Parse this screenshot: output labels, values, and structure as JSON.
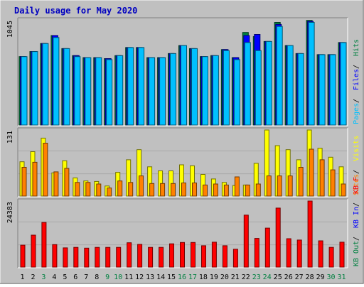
{
  "title": "Daily usage for May 2020",
  "colors": {
    "background": "#c0c0c0",
    "frame_dark": "#808080",
    "frame_light": "#ffffff",
    "title_blue": "#0000c0",
    "hits": "#008040",
    "files": "#0000ff",
    "pages": "#00c0ff",
    "visits": "#ffff00",
    "sites": "#ff8000",
    "kb_f": "#ff0000",
    "kb_in": "#0000ff",
    "kb_out": "#008040",
    "weekend_label": "#008040",
    "weekday_label": "#000000"
  },
  "chart_data": [
    {
      "type": "bar",
      "name": "hits-files-pages",
      "ymax_label": "1045",
      "ylim": [
        0,
        1045
      ],
      "legend": [
        {
          "label": "Hits",
          "color": "#008040"
        },
        {
          "label": "Files",
          "color": "#0000ff"
        },
        {
          "label": "Pages",
          "color": "#00c0ff"
        }
      ],
      "categories": [
        "1",
        "2",
        "3",
        "4",
        "5",
        "6",
        "7",
        "8",
        "9",
        "10",
        "11",
        "12",
        "13",
        "14",
        "15",
        "16",
        "17",
        "18",
        "19",
        "20",
        "21",
        "22",
        "23",
        "24",
        "25",
        "26",
        "27",
        "28",
        "29",
        "30",
        "31"
      ],
      "series": [
        {
          "name": "Hits",
          "values": [
            680,
            730,
            810,
            890,
            760,
            690,
            670,
            670,
            660,
            690,
            770,
            770,
            670,
            670,
            710,
            790,
            760,
            680,
            690,
            750,
            670,
            920,
            880,
            830,
            1020,
            790,
            710,
            1040,
            700,
            700,
            820
          ]
        },
        {
          "name": "Files",
          "values": [
            680,
            730,
            810,
            890,
            760,
            690,
            670,
            670,
            660,
            690,
            770,
            770,
            670,
            670,
            710,
            790,
            760,
            680,
            690,
            750,
            670,
            890,
            900,
            830,
            1000,
            790,
            710,
            1030,
            700,
            700,
            820
          ]
        },
        {
          "name": "Pages",
          "values": [
            680,
            730,
            810,
            870,
            760,
            680,
            670,
            670,
            650,
            690,
            770,
            770,
            670,
            670,
            710,
            790,
            760,
            680,
            690,
            740,
            650,
            820,
            740,
            830,
            980,
            790,
            710,
            1020,
            700,
            700,
            820
          ]
        }
      ]
    },
    {
      "type": "bar",
      "name": "visits-sites",
      "ymax_label": "131",
      "ylim": [
        0,
        131
      ],
      "legend": [
        {
          "label": "Visits",
          "color": "#ffff00"
        },
        {
          "label": "Sites",
          "color": "#ff8000"
        }
      ],
      "categories": [
        "1",
        "2",
        "3",
        "4",
        "5",
        "6",
        "7",
        "8",
        "9",
        "10",
        "11",
        "12",
        "13",
        "14",
        "15",
        "16",
        "17",
        "18",
        "19",
        "20",
        "21",
        "22",
        "23",
        "24",
        "25",
        "26",
        "27",
        "28",
        "29",
        "30",
        "31"
      ],
      "series": [
        {
          "name": "Visits",
          "values": [
            68,
            88,
            115,
            46,
            70,
            36,
            30,
            29,
            20,
            47,
            72,
            92,
            58,
            50,
            50,
            62,
            60,
            43,
            34,
            27,
            21,
            22,
            65,
            131,
            100,
            92,
            72,
            131,
            95,
            77,
            58
          ]
        },
        {
          "name": "Sites",
          "values": [
            57,
            67,
            105,
            48,
            55,
            27,
            27,
            24,
            16,
            30,
            27,
            40,
            25,
            25,
            25,
            26,
            26,
            22,
            24,
            22,
            38,
            22,
            24,
            40,
            40,
            40,
            57,
            93,
            72,
            52,
            24
          ]
        }
      ]
    },
    {
      "type": "bar",
      "name": "kb",
      "ymax_label": "24383",
      "ylim": [
        0,
        24383
      ],
      "legend": [
        {
          "label": "KB F",
          "color": "#ff0000"
        },
        {
          "label": "KB In",
          "color": "#0000ff"
        },
        {
          "label": "KB Out",
          "color": "#008040"
        }
      ],
      "categories": [
        "1",
        "2",
        "3",
        "4",
        "5",
        "6",
        "7",
        "8",
        "9",
        "10",
        "11",
        "12",
        "13",
        "14",
        "15",
        "16",
        "17",
        "18",
        "19",
        "20",
        "21",
        "22",
        "23",
        "24",
        "25",
        "26",
        "27",
        "28",
        "29",
        "30",
        "31"
      ],
      "series": [
        {
          "name": "KB F",
          "values": [
            8100,
            11800,
            16500,
            8300,
            7100,
            7300,
            7000,
            7300,
            7300,
            7300,
            9000,
            8400,
            7300,
            7300,
            8600,
            9100,
            9100,
            7900,
            9200,
            7900,
            6600,
            19200,
            10600,
            14400,
            21800,
            10500,
            10000,
            24383,
            9700,
            7300,
            9200
          ]
        }
      ]
    }
  ],
  "x_labels": [
    {
      "t": "1",
      "weekend": false
    },
    {
      "t": "2",
      "weekend": false
    },
    {
      "t": "3",
      "weekend": true
    },
    {
      "t": "4",
      "weekend": false
    },
    {
      "t": "5",
      "weekend": false
    },
    {
      "t": "6",
      "weekend": false
    },
    {
      "t": "7",
      "weekend": false
    },
    {
      "t": "8",
      "weekend": false
    },
    {
      "t": "9",
      "weekend": true
    },
    {
      "t": "10",
      "weekend": true
    },
    {
      "t": "11",
      "weekend": false
    },
    {
      "t": "12",
      "weekend": false
    },
    {
      "t": "13",
      "weekend": false
    },
    {
      "t": "14",
      "weekend": false
    },
    {
      "t": "15",
      "weekend": false
    },
    {
      "t": "16",
      "weekend": true
    },
    {
      "t": "17",
      "weekend": true
    },
    {
      "t": "18",
      "weekend": false
    },
    {
      "t": "19",
      "weekend": false
    },
    {
      "t": "20",
      "weekend": false
    },
    {
      "t": "21",
      "weekend": false
    },
    {
      "t": "22",
      "weekend": false
    },
    {
      "t": "23",
      "weekend": true
    },
    {
      "t": "24",
      "weekend": true
    },
    {
      "t": "25",
      "weekend": false
    },
    {
      "t": "26",
      "weekend": false
    },
    {
      "t": "27",
      "weekend": false
    },
    {
      "t": "28",
      "weekend": false
    },
    {
      "t": "29",
      "weekend": false
    },
    {
      "t": "30",
      "weekend": true
    },
    {
      "t": "31",
      "weekend": true
    }
  ]
}
